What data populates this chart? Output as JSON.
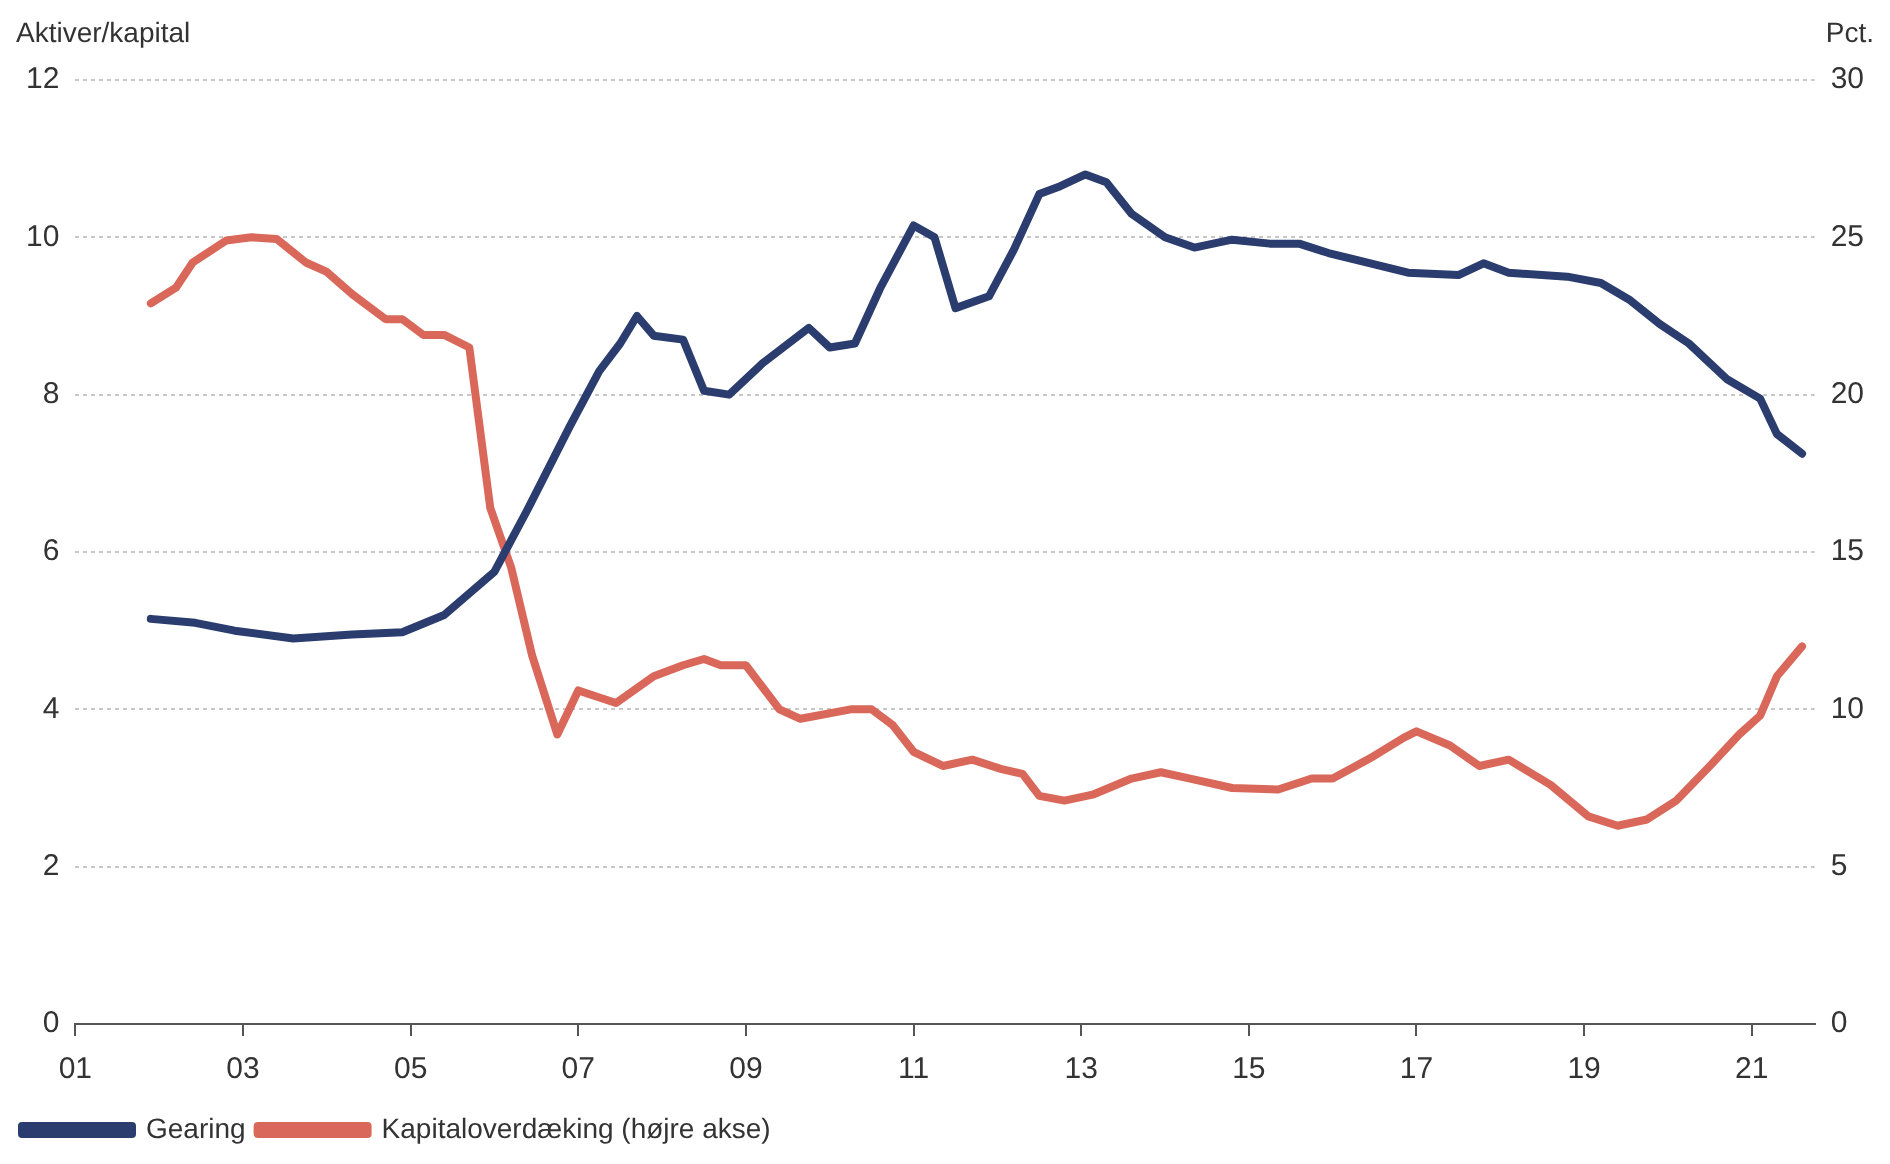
{
  "chart_data": {
    "type": "line",
    "ylabel": "Aktiver/kapital",
    "y2label": "Pct.",
    "xlim": [
      2001,
      2021.75
    ],
    "xticks": [
      {
        "value": 2001,
        "label": "01"
      },
      {
        "value": 2003,
        "label": "03"
      },
      {
        "value": 2005,
        "label": "05"
      },
      {
        "value": 2007,
        "label": "07"
      },
      {
        "value": 2009,
        "label": "09"
      },
      {
        "value": 2011,
        "label": "11"
      },
      {
        "value": 2013,
        "label": "13"
      },
      {
        "value": 2015,
        "label": "15"
      },
      {
        "value": 2017,
        "label": "17"
      },
      {
        "value": 2019,
        "label": "19"
      },
      {
        "value": 2021,
        "label": "21"
      }
    ],
    "ylim": [
      0,
      12
    ],
    "yticks": [
      0,
      2,
      4,
      6,
      8,
      10,
      12
    ],
    "y2lim": [
      0,
      30
    ],
    "y2ticks": [
      0,
      5,
      10,
      15,
      20,
      25,
      30
    ],
    "grid": "y",
    "legend": "bottom left",
    "marker": "none",
    "line_style": "solid",
    "series": [
      {
        "name": "Gearing",
        "color": "#2b3d6e",
        "x": [
          2001.9,
          2002.43,
          2002.9,
          2003.6,
          2004.3,
          2004.9,
          2005.4,
          2006.0,
          2006.4,
          2006.9,
          2007.25,
          2007.5,
          2007.7,
          2007.9,
          2008.25,
          2008.5,
          2008.8,
          2009.2,
          2009.75,
          2010.0,
          2010.3,
          2010.6,
          2011.0,
          2011.25,
          2011.5,
          2011.9,
          2012.2,
          2012.5,
          2012.75,
          2013.05,
          2013.3,
          2013.6,
          2014.0,
          2014.35,
          2014.8,
          2015.25,
          2015.6,
          2015.95,
          2016.45,
          2016.9,
          2017.5,
          2017.8,
          2018.1,
          2018.8,
          2019.2,
          2019.55,
          2019.9,
          2020.25,
          2020.7,
          2021.1,
          2021.3,
          2021.6
        ],
        "values": [
          5.15,
          5.1,
          5.0,
          4.9,
          4.95,
          4.98,
          5.2,
          5.75,
          6.55,
          7.6,
          8.3,
          8.65,
          9.0,
          8.75,
          8.7,
          8.05,
          8.0,
          8.4,
          8.85,
          8.6,
          8.65,
          9.35,
          10.15,
          10.0,
          9.1,
          9.25,
          9.85,
          10.55,
          10.65,
          10.8,
          10.7,
          10.3,
          10.0,
          9.87,
          9.97,
          9.92,
          9.92,
          9.8,
          9.67,
          9.55,
          9.52,
          9.67,
          9.55,
          9.5,
          9.42,
          9.2,
          8.9,
          8.65,
          8.2,
          7.95,
          7.5,
          7.25
        ]
      },
      {
        "name": "Kapitaloverdæking (højre akse)",
        "color": "#d9685a",
        "axis": "y2",
        "x": [
          2001.9,
          2002.2,
          2002.4,
          2002.8,
          2003.1,
          2003.4,
          2003.75,
          2004.0,
          2004.3,
          2004.7,
          2004.9,
          2005.15,
          2005.4,
          2005.7,
          2005.95,
          2006.2,
          2006.45,
          2006.75,
          2007.0,
          2007.45,
          2007.9,
          2008.25,
          2008.5,
          2008.7,
          2009.0,
          2009.4,
          2009.65,
          2010.25,
          2010.5,
          2010.75,
          2011.0,
          2011.35,
          2011.7,
          2012.05,
          2012.3,
          2012.5,
          2012.8,
          2013.15,
          2013.6,
          2013.95,
          2014.3,
          2014.8,
          2015.35,
          2015.75,
          2016.0,
          2016.45,
          2016.85,
          2017.0,
          2017.4,
          2017.75,
          2018.1,
          2018.6,
          2019.05,
          2019.4,
          2019.75,
          2020.1,
          2020.5,
          2020.85,
          2021.1,
          2021.3,
          2021.6
        ],
        "values": [
          22.9,
          23.4,
          24.2,
          24.9,
          25.0,
          24.95,
          24.2,
          23.9,
          23.2,
          22.4,
          22.4,
          21.9,
          21.9,
          21.5,
          16.4,
          14.5,
          11.7,
          9.2,
          10.6,
          10.2,
          11.05,
          11.4,
          11.6,
          11.4,
          11.4,
          10.0,
          9.7,
          10.0,
          10.0,
          9.5,
          8.65,
          8.2,
          8.4,
          8.1,
          7.95,
          7.25,
          7.1,
          7.3,
          7.8,
          8.0,
          7.8,
          7.5,
          7.45,
          7.8,
          7.8,
          8.45,
          9.1,
          9.3,
          8.85,
          8.2,
          8.4,
          7.6,
          6.6,
          6.3,
          6.5,
          7.1,
          8.2,
          9.2,
          9.8,
          11.05,
          12.0
        ]
      }
    ]
  }
}
